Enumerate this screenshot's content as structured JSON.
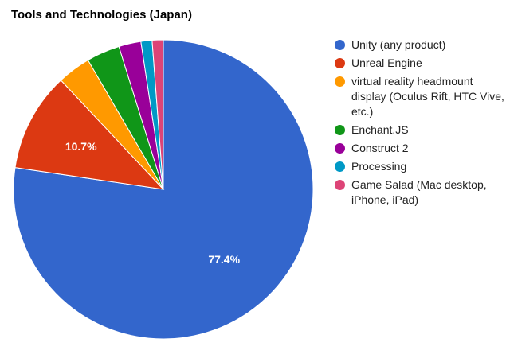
{
  "chart_data": {
    "type": "pie",
    "title": "Tools and Technologies (Japan)",
    "legend_position": "right",
    "slices": [
      {
        "label": "Unity (any product)",
        "value": 77.4,
        "color": "#3366cc",
        "display": "77.4%"
      },
      {
        "label": "Unreal Engine",
        "value": 10.7,
        "color": "#dc3912",
        "display": "10.7%"
      },
      {
        "label": "virtual reality headmount display (Oculus Rift, HTC Vive, etc.)",
        "value": 3.6,
        "color": "#ff9900",
        "display": ""
      },
      {
        "label": "Enchant.JS",
        "value": 3.6,
        "color": "#109618",
        "display": ""
      },
      {
        "label": "Construct 2",
        "value": 2.4,
        "color": "#990099",
        "display": ""
      },
      {
        "label": "Processing",
        "value": 1.2,
        "color": "#0099c6",
        "display": ""
      },
      {
        "label": "Game Salad (Mac desktop, iPhone, iPad)",
        "value": 1.2,
        "color": "#dd4477",
        "display": ""
      }
    ]
  }
}
